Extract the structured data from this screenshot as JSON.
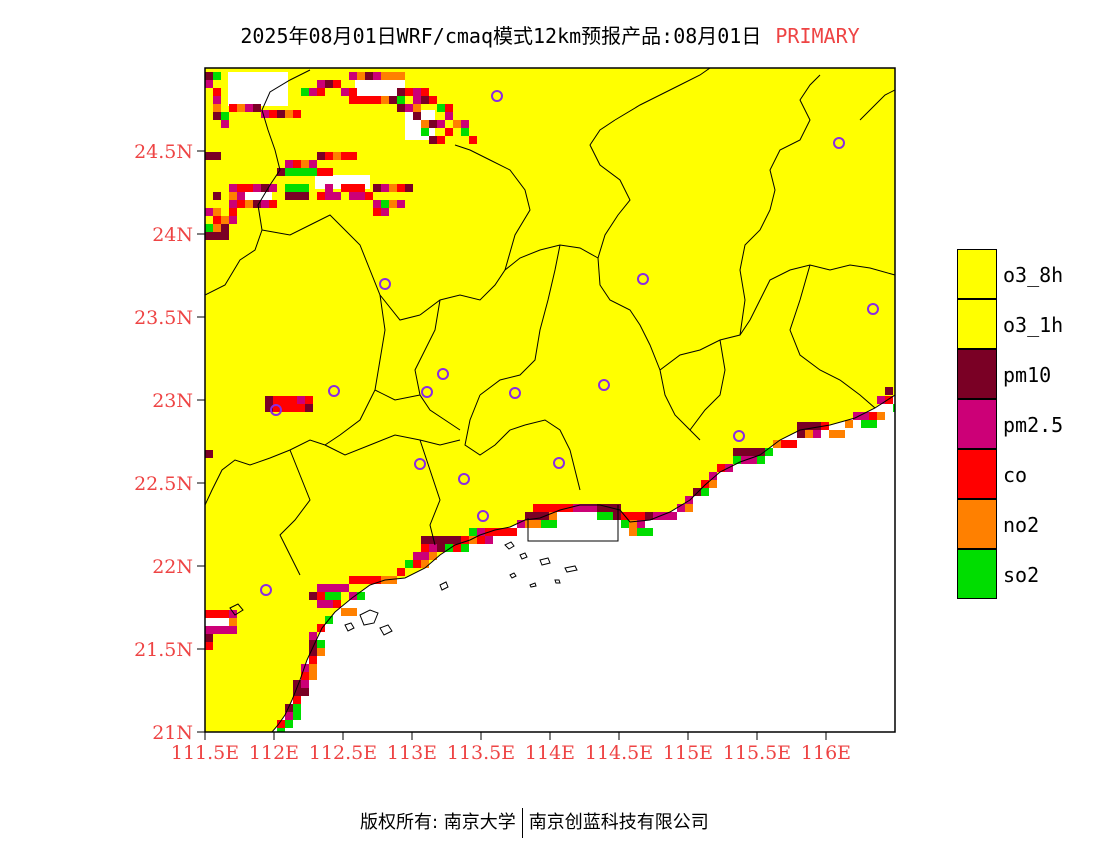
{
  "header": {
    "title": "2025年08月01日WRF/cmaq模式12km预报产品:08月01日",
    "tag": "PRIMARY"
  },
  "map": {
    "lon_ticks": [
      "111.5E",
      "112E",
      "112.5E",
      "113E",
      "113.5E",
      "114E",
      "114.5E",
      "115E",
      "115.5E",
      "116E"
    ],
    "lat_ticks": [
      "21N",
      "21.5N",
      "22N",
      "22.5N",
      "23N",
      "23.5N",
      "24N",
      "24.5N"
    ],
    "colors": {
      "land": "#ffff00",
      "sea": "#ffffff",
      "ring": "#8a2be2"
    }
  },
  "legend": {
    "items": [
      {
        "label": "o3_8h",
        "color": "#ffff00"
      },
      {
        "label": "o3_1h",
        "color": "#ffff00"
      },
      {
        "label": "pm10",
        "color": "#7a0025"
      },
      {
        "label": "pm2.5",
        "color": "#cc0077"
      },
      {
        "label": "co",
        "color": "#ff0000"
      },
      {
        "label": "no2",
        "color": "#ff8000"
      },
      {
        "label": "so2",
        "color": "#00dd00"
      }
    ]
  },
  "footer": {
    "left": "版权所有: 南京大学",
    "right": "南京创蓝科技有限公司"
  }
}
